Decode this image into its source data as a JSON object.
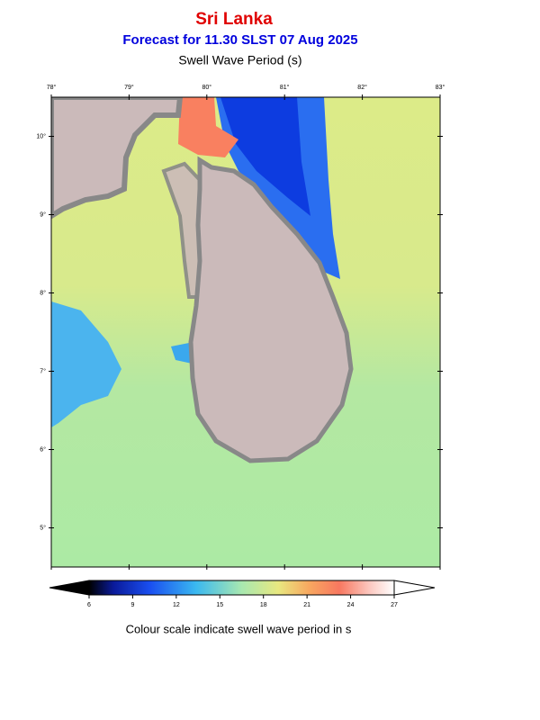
{
  "header": {
    "title": "Sri Lanka",
    "subtitle": "Forecast for  11.30 SLST 07 Aug 2025",
    "variable": "Swell Wave Period (s)"
  },
  "map": {
    "xlim": [
      78,
      83
    ],
    "ylim": [
      4.5,
      10.5
    ],
    "xticks": [
      {
        "value": 78,
        "label": "78°"
      },
      {
        "value": 79,
        "label": "79°"
      },
      {
        "value": 80,
        "label": "80°"
      },
      {
        "value": 81,
        "label": "81°"
      },
      {
        "value": 82,
        "label": "82°"
      },
      {
        "value": 83,
        "label": "83°"
      }
    ],
    "yticks": [
      {
        "value": 10,
        "label": "10°"
      },
      {
        "value": 9,
        "label": "9°"
      },
      {
        "value": 8,
        "label": "8°"
      },
      {
        "value": 7,
        "label": "7°"
      },
      {
        "value": 6,
        "label": "6°"
      },
      {
        "value": 5,
        "label": "5°"
      }
    ]
  },
  "colorbar": {
    "range": [
      6,
      27
    ],
    "ticks": [
      6,
      9,
      12,
      15,
      18,
      21,
      24,
      27
    ],
    "caption": "Colour scale indicate swell wave period in s"
  }
}
